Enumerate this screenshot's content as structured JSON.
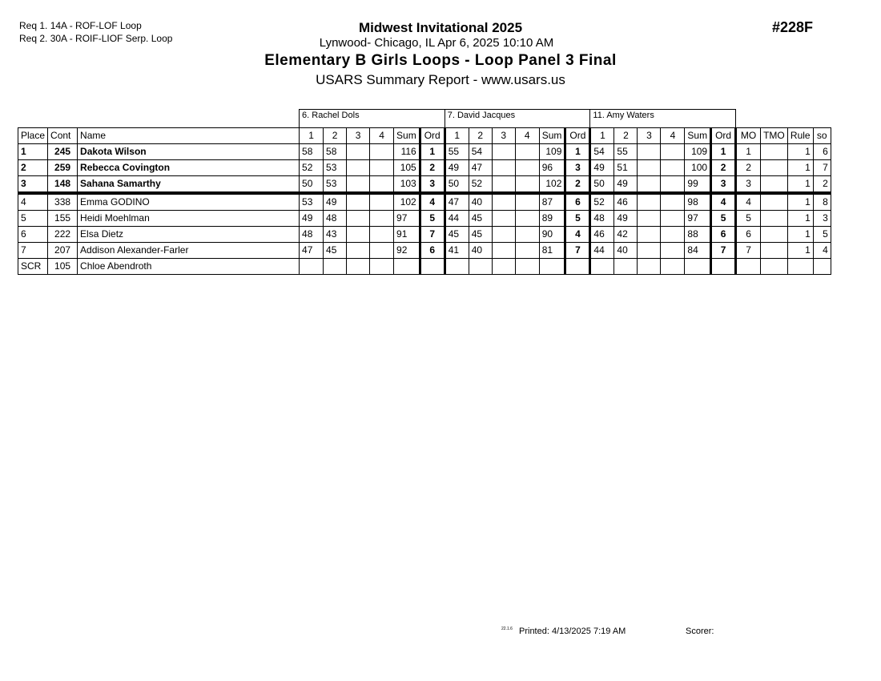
{
  "requirements": [
    "Req  1.  14A - ROF-LOF Loop",
    "Req  2.  30A - ROIF-LIOF Serp. Loop"
  ],
  "event": {
    "name": "Midwest Invitational 2025",
    "location": "Lynwood- Chicago, IL  Apr 6, 2025  10:10 AM",
    "title": "Elementary B Girls Loops - Loop Panel 3 Final",
    "subtitle": "USARS Summary Report - www.usars.us",
    "number": "#228F"
  },
  "judges": [
    "6.  Rachel Dols",
    "7.  David Jacques",
    "11.  Amy Waters"
  ],
  "headers": {
    "place": "Place",
    "cont": "Cont",
    "name": "Name",
    "scores": [
      "1",
      "2",
      "3",
      "4",
      "Sum",
      "Ord"
    ],
    "mo": "MO",
    "tmo": "TMO",
    "rule": "Rule",
    "so": "so"
  },
  "rows": [
    {
      "place": "1",
      "cont": "245",
      "name": "Dakota Wilson",
      "bold": true,
      "j": [
        [
          "58",
          "58",
          "",
          "",
          "116",
          "1"
        ],
        [
          "55",
          "54",
          "",
          "",
          "109",
          "1"
        ],
        [
          "54",
          "55",
          "",
          "",
          "109",
          "1"
        ]
      ],
      "mo": "1",
      "tmo": "",
      "rule": "1",
      "so": "6"
    },
    {
      "place": "2",
      "cont": "259",
      "name": "Rebecca Covington",
      "bold": true,
      "j": [
        [
          "52",
          "53",
          "",
          "",
          "105",
          "2"
        ],
        [
          "49",
          "47",
          "",
          "",
          "96",
          "3"
        ],
        [
          "49",
          "51",
          "",
          "",
          "100",
          "2"
        ]
      ],
      "mo": "2",
      "tmo": "",
      "rule": "1",
      "so": "7"
    },
    {
      "place": "3",
      "cont": "148",
      "name": "Sahana Samarthy",
      "bold": true,
      "j": [
        [
          "50",
          "53",
          "",
          "",
          "103",
          "3"
        ],
        [
          "50",
          "52",
          "",
          "",
          "102",
          "2"
        ],
        [
          "50",
          "49",
          "",
          "",
          "99",
          "3"
        ]
      ],
      "mo": "3",
      "tmo": "",
      "rule": "1",
      "so": "2"
    },
    {
      "place": "4",
      "cont": "338",
      "name": "Emma GODINO",
      "bold": false,
      "j": [
        [
          "53",
          "49",
          "",
          "",
          "102",
          "4"
        ],
        [
          "47",
          "40",
          "",
          "",
          "87",
          "6"
        ],
        [
          "52",
          "46",
          "",
          "",
          "98",
          "4"
        ]
      ],
      "mo": "4",
      "tmo": "",
      "rule": "1",
      "so": "8"
    },
    {
      "place": "5",
      "cont": "155",
      "name": "Heidi Moehlman",
      "bold": false,
      "j": [
        [
          "49",
          "48",
          "",
          "",
          "97",
          "5"
        ],
        [
          "44",
          "45",
          "",
          "",
          "89",
          "5"
        ],
        [
          "48",
          "49",
          "",
          "",
          "97",
          "5"
        ]
      ],
      "mo": "5",
      "tmo": "",
      "rule": "1",
      "so": "3"
    },
    {
      "place": "6",
      "cont": "222",
      "name": "Elsa Dietz",
      "bold": false,
      "j": [
        [
          "48",
          "43",
          "",
          "",
          "91",
          "7"
        ],
        [
          "45",
          "45",
          "",
          "",
          "90",
          "4"
        ],
        [
          "46",
          "42",
          "",
          "",
          "88",
          "6"
        ]
      ],
      "mo": "6",
      "tmo": "",
      "rule": "1",
      "so": "5"
    },
    {
      "place": "7",
      "cont": "207",
      "name": "Addison Alexander-Farler",
      "bold": false,
      "j": [
        [
          "47",
          "45",
          "",
          "",
          "92",
          "6"
        ],
        [
          "41",
          "40",
          "",
          "",
          "81",
          "7"
        ],
        [
          "44",
          "40",
          "",
          "",
          "84",
          "7"
        ]
      ],
      "mo": "7",
      "tmo": "",
      "rule": "1",
      "so": "4"
    },
    {
      "place": "SCR",
      "cont": "105",
      "name": "Chloe Abendroth",
      "bold": false,
      "j": [
        [
          "",
          "",
          "",
          "",
          "",
          ""
        ],
        [
          "",
          "",
          "",
          "",
          "",
          ""
        ],
        [
          "",
          "",
          "",
          "",
          "",
          ""
        ]
      ],
      "mo": "",
      "tmo": "",
      "rule": "",
      "so": ""
    }
  ],
  "footer": {
    "version": "22.1.6",
    "printed": "Printed:  4/13/2025  7:19 AM",
    "scorer": "Scorer:"
  }
}
